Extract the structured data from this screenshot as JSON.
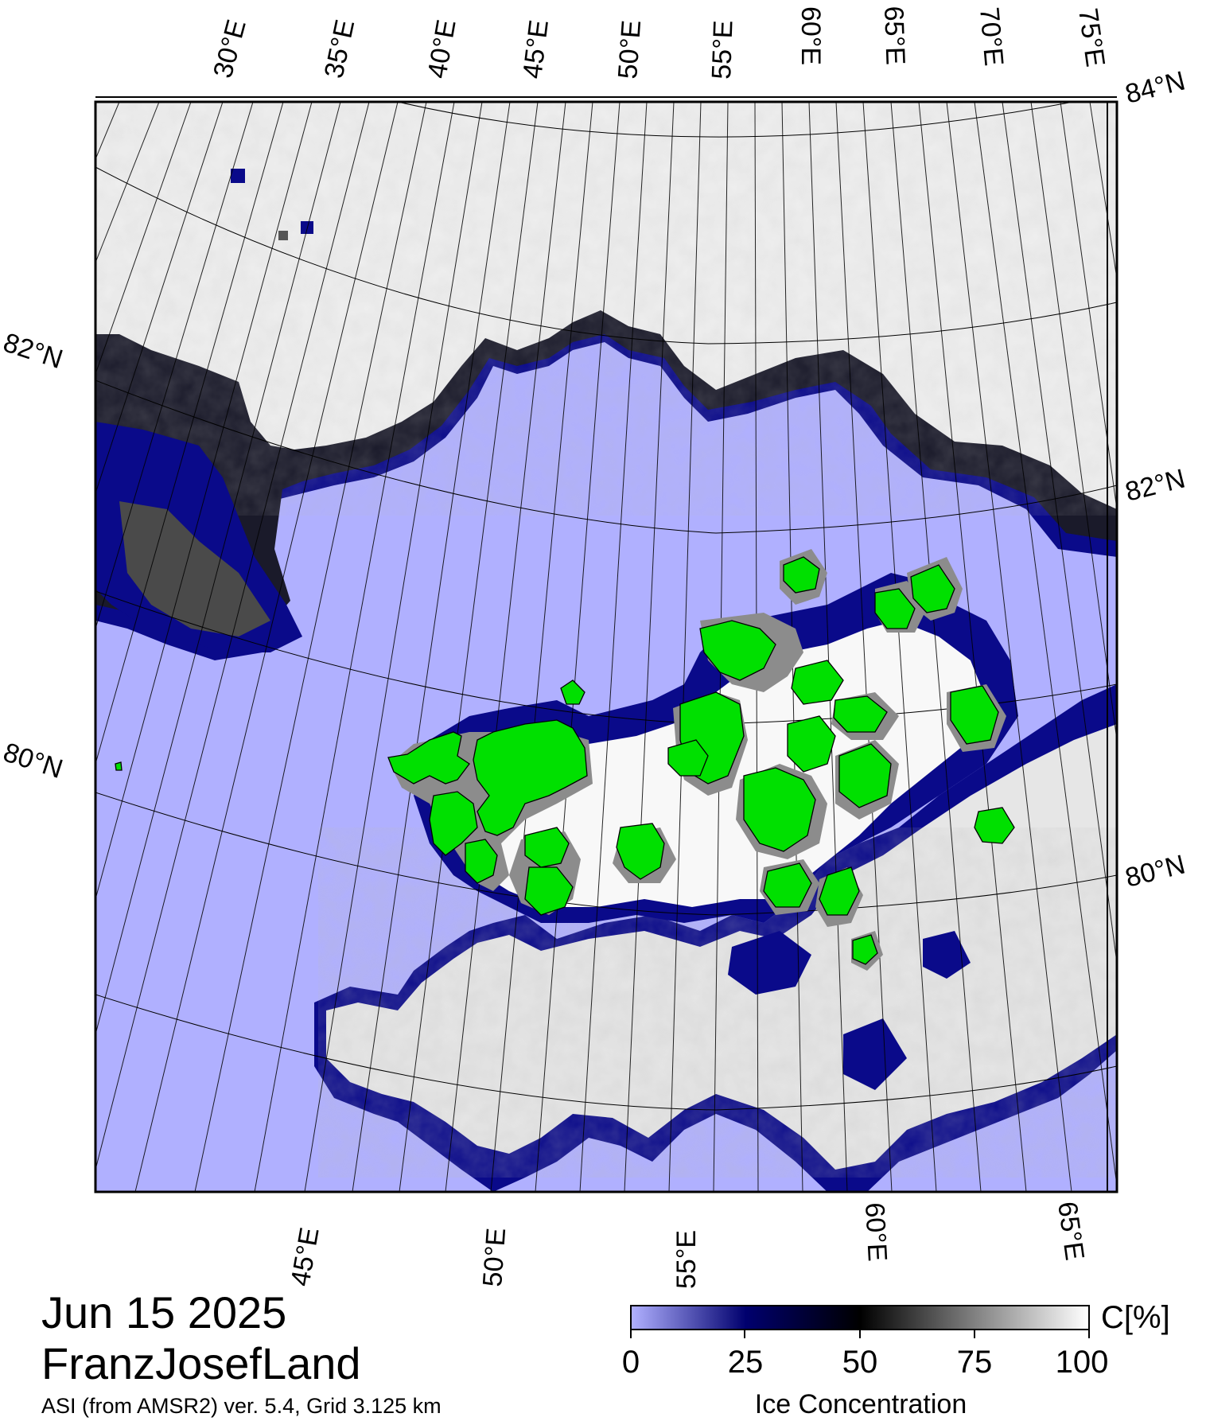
{
  "title": {
    "date": "Jun 15 2025",
    "region": "FranzJosefLand",
    "subtitle": "ASI (from AMSR2) ver. 5.4,  Grid 3.125 km"
  },
  "map": {
    "top_longitude_labels": [
      "30°E",
      "35°E",
      "40°E",
      "45°E",
      "50°E",
      "55°E",
      "60°E",
      "65°E",
      "70°E",
      "75°E"
    ],
    "bottom_longitude_labels": [
      "45°E",
      "50°E",
      "55°E",
      "60°E",
      "65°E"
    ],
    "left_latitude_labels": [
      "82°N",
      "80°N"
    ],
    "right_latitude_labels": [
      "84°N",
      "82°N",
      "80°N"
    ],
    "colors": {
      "open_water": "#b0b0ff",
      "low_concentration": "#0a0a8a",
      "mid_concentration": "#101010",
      "high_concentration": "#f4f4f4",
      "land": "#00e000",
      "land_mask": "#8c8c8c",
      "frame": "#000000"
    }
  },
  "colorbar": {
    "unit_label": "C[%]",
    "title": "Ice Concentration",
    "ticks": [
      "0",
      "25",
      "50",
      "75",
      "100"
    ],
    "stops": [
      "#b0b0ff",
      "#00006e",
      "#000000",
      "#808080",
      "#ffffff"
    ]
  }
}
